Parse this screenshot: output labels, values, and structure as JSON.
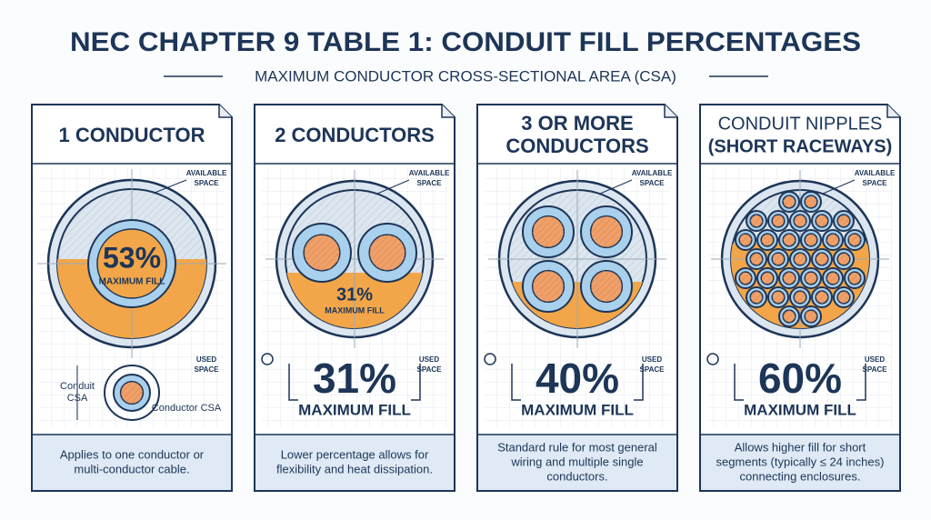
{
  "header": {
    "title": "NEC CHAPTER 9 TABLE 1: CONDUIT FILL PERCENTAGES",
    "subtitle": "MAXIMUM CONDUCTOR CROSS-SECTIONAL AREA (CSA)"
  },
  "cards": [
    {
      "title": [
        "1 CONDUCTOR"
      ],
      "available_label": [
        "AVAILABLE",
        "SPACE"
      ],
      "used_label": [
        "USED",
        "SPACE"
      ],
      "inner_percent": "53%",
      "inner_label": "MAXIMUM FILL",
      "conduit_label": [
        "Conduit",
        "CSA"
      ],
      "conductor_label": "Conductor CSA",
      "description": [
        "Applies to one conductor or",
        "multi-conductor cable."
      ]
    },
    {
      "title": [
        "2 CONDUCTORS"
      ],
      "available_label": [
        "AVAILABLE",
        "SPACE"
      ],
      "inner_percent": "31%",
      "inner_label": "MAXIMUM FILL",
      "used_label": [
        "USED",
        "SPACE"
      ],
      "fill_percent": "31%",
      "fill_label": "MAXIMUM FILL",
      "description": [
        "Lower percentage allows for",
        "flexibility and heat dissipation."
      ]
    },
    {
      "title": [
        "3 OR MORE",
        "CONDUCTORS"
      ],
      "available_label": [
        "AVAILABLE",
        "SPACE"
      ],
      "used_label": [
        "USED",
        "SPACE"
      ],
      "fill_percent": "40%",
      "fill_label": "MAXIMUM FILL",
      "description": [
        "Standard rule for most general",
        "wiring and multiple single",
        "conductors."
      ]
    },
    {
      "title": [
        "CONDUIT NIPPLES",
        "(SHORT RACEWAYS)"
      ],
      "available_label": [
        "AVAILABLE",
        "SPACE"
      ],
      "used_label": [
        "USED",
        "SPACE"
      ],
      "fill_percent": "60%",
      "fill_label": "MAXIMUM FILL",
      "description": [
        "Allows higher fill for short",
        "segments (typically ≤ 24 inches)",
        "connecting enclosures."
      ]
    }
  ]
}
